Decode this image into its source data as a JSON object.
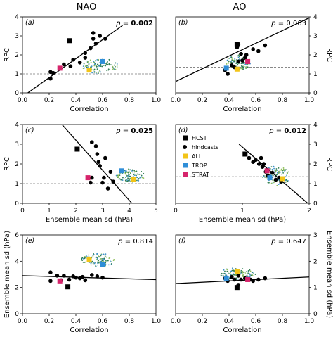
{
  "column_titles": [
    "NAO",
    "AO"
  ],
  "legend": [
    {
      "label": "HCST",
      "color": "#000000",
      "marker": "square"
    },
    {
      "label": "hindcasts",
      "color": "#000000",
      "marker": "circle"
    },
    {
      "label": "ALL",
      "color": "#f2c418",
      "marker": "square"
    },
    {
      "label": "TROP",
      "color": "#2f8ed8",
      "marker": "square"
    },
    {
      "label": "STRAT",
      "color": "#d6246b",
      "marker": "square"
    }
  ],
  "chart_data": [
    {
      "id": "a",
      "panel_label": "(a)",
      "type": "scatter",
      "p_label": "p = ",
      "p_value": "0.002",
      "p_bold": true,
      "xlabel": "Correlation",
      "ylabel": "RPC",
      "ylabel_side": "left",
      "xlim": [
        0,
        1
      ],
      "ylim": [
        0,
        4
      ],
      "xticks": [
        "0.0",
        "0.2",
        "0.4",
        "0.6",
        "0.8",
        "1.0"
      ],
      "xtick_values": [
        0,
        0.2,
        0.4,
        0.6,
        0.8,
        1.0
      ],
      "yticks": [
        "0",
        "1",
        "2",
        "3",
        "4"
      ],
      "ytick_values": [
        0,
        1,
        2,
        3,
        4
      ],
      "hline": 1,
      "fit_line": [
        [
          0.04,
          0
        ],
        [
          0.75,
          3.55
        ]
      ],
      "cloud": [
        {
          "x": [
            0.45,
            0.72
          ],
          "y": [
            1.0,
            1.8
          ]
        }
      ],
      "hindcasts": [
        [
          0.21,
          0.75
        ],
        [
          0.21,
          1.1
        ],
        [
          0.31,
          1.5
        ],
        [
          0.36,
          1.4
        ],
        [
          0.38,
          1.75
        ],
        [
          0.43,
          1.6
        ],
        [
          0.47,
          1.85
        ],
        [
          0.47,
          2.1
        ],
        [
          0.51,
          2.35
        ],
        [
          0.53,
          2.85
        ],
        [
          0.55,
          2.6
        ],
        [
          0.58,
          3.0
        ],
        [
          0.62,
          2.85
        ],
        [
          0.53,
          3.15
        ],
        [
          0.23,
          1.05
        ]
      ],
      "hcst": [
        0.35,
        2.75
      ],
      "all": [
        0.5,
        1.2
      ],
      "trop": [
        0.6,
        1.65
      ],
      "strat": [
        0.28,
        1.3
      ]
    },
    {
      "id": "b",
      "panel_label": "(b)",
      "type": "scatter",
      "p_label": "p = ",
      "p_value": "0.063",
      "p_bold": false,
      "xlabel": "Correlation",
      "ylabel": "RPC",
      "ylabel_side": "right",
      "xlim": [
        0,
        1
      ],
      "ylim": [
        0,
        4
      ],
      "xticks": [
        "0.0",
        "0.2",
        "0.4",
        "0.6",
        "0.8",
        "1.0"
      ],
      "xtick_values": [
        0,
        0.2,
        0.4,
        0.6,
        0.8,
        1.0
      ],
      "yticks": [
        "0",
        "1",
        "2",
        "3",
        "4"
      ],
      "ytick_values": [
        0,
        1,
        2,
        3,
        4
      ],
      "hline": 1.35,
      "fit_line": [
        [
          0.0,
          0.6
        ],
        [
          1.0,
          3.95
        ]
      ],
      "cloud": [
        {
          "x": [
            0.38,
            0.56
          ],
          "y": [
            1.2,
            2.0
          ]
        }
      ],
      "hindcasts": [
        [
          0.37,
          1.2
        ],
        [
          0.39,
          1.0
        ],
        [
          0.42,
          1.45
        ],
        [
          0.44,
          1.35
        ],
        [
          0.47,
          1.65
        ],
        [
          0.49,
          2.05
        ],
        [
          0.5,
          1.7
        ],
        [
          0.52,
          1.85
        ],
        [
          0.46,
          2.4
        ],
        [
          0.47,
          2.55
        ],
        [
          0.53,
          2.0
        ],
        [
          0.58,
          2.3
        ],
        [
          0.62,
          2.2
        ],
        [
          0.67,
          2.5
        ]
      ],
      "hcst": [
        0.46,
        2.55
      ],
      "all": [
        0.46,
        1.25
      ],
      "trop": [
        0.38,
        1.3
      ],
      "strat": [
        0.54,
        1.65
      ]
    },
    {
      "id": "c",
      "panel_label": "(c)",
      "type": "scatter",
      "p_label": "p = ",
      "p_value": "0.025",
      "p_bold": true,
      "xlabel": "Ensemble mean sd (hPa)",
      "ylabel": "RPC",
      "ylabel_side": "left",
      "xlim": [
        0,
        5
      ],
      "ylim": [
        0,
        4
      ],
      "xticks": [
        "0",
        "1",
        "2",
        "3",
        "4",
        "5"
      ],
      "xtick_values": [
        0,
        1,
        2,
        3,
        4,
        5
      ],
      "yticks": [
        "0",
        "1",
        "2",
        "3",
        "4"
      ],
      "ytick_values": [
        0,
        1,
        2,
        3,
        4
      ],
      "hline": 1,
      "fit_line": [
        [
          1.48,
          4.0
        ],
        [
          4.1,
          0
        ]
      ],
      "cloud": [
        {
          "x": [
            3.5,
            4.6
          ],
          "y": [
            1.05,
            1.75
          ]
        }
      ],
      "hindcasts": [
        [
          2.55,
          1.05
        ],
        [
          2.6,
          1.3
        ],
        [
          2.6,
          3.1
        ],
        [
          2.75,
          2.9
        ],
        [
          2.8,
          2.5
        ],
        [
          2.85,
          2.1
        ],
        [
          2.9,
          1.9
        ],
        [
          3.05,
          1.3
        ],
        [
          3.1,
          2.3
        ],
        [
          3.2,
          0.75
        ],
        [
          3.0,
          1.05
        ],
        [
          3.3,
          1.6
        ],
        [
          3.4,
          1.1
        ]
      ],
      "hcst": [
        2.05,
        2.75
      ],
      "all": [
        4.15,
        1.2
      ],
      "trop": [
        3.7,
        1.65
      ],
      "strat": [
        2.45,
        1.3
      ]
    },
    {
      "id": "d",
      "panel_label": "(d)",
      "type": "scatter",
      "p_label": "p = ",
      "p_value": "0.012",
      "p_bold": true,
      "xlabel": "Ensemble mean sd (hPa)",
      "ylabel": "RPC",
      "ylabel_side": "right",
      "xlim": [
        0,
        2
      ],
      "ylim": [
        0,
        4
      ],
      "xticks": [
        "0",
        "1",
        "2"
      ],
      "xtick_values": [
        0,
        1,
        2
      ],
      "yticks": [
        "0",
        "1",
        "2",
        "3",
        "4"
      ],
      "ytick_values": [
        0,
        1,
        2,
        3,
        4
      ],
      "hline": 1.35,
      "fit_line": [
        [
          0.95,
          3.0
        ],
        [
          1.98,
          0
        ]
      ],
      "cloud": [
        {
          "x": [
            1.3,
            1.72
          ],
          "y": [
            0.9,
            1.9
          ]
        }
      ],
      "hindcasts": [
        [
          1.1,
          2.3
        ],
        [
          1.16,
          2.1
        ],
        [
          1.2,
          2.2
        ],
        [
          1.25,
          2.0
        ],
        [
          1.3,
          1.85
        ],
        [
          1.32,
          2.0
        ],
        [
          1.35,
          1.6
        ],
        [
          1.38,
          1.4
        ],
        [
          1.42,
          1.3
        ],
        [
          1.45,
          1.55
        ],
        [
          1.5,
          1.2
        ],
        [
          1.55,
          1.3
        ],
        [
          1.58,
          1.1
        ],
        [
          1.28,
          2.3
        ]
      ],
      "hcst": [
        1.04,
        2.5
      ],
      "all": [
        1.6,
        1.25
      ],
      "trop": [
        1.41,
        1.3
      ],
      "strat": [
        1.37,
        1.65
      ]
    },
    {
      "id": "e",
      "panel_label": "(e)",
      "type": "scatter",
      "p_label": "p = ",
      "p_value": "0.814",
      "p_bold": false,
      "xlabel": "Correlation",
      "ylabel": "Ensemble mean sd (hPa)",
      "ylabel_side": "left",
      "xlim": [
        0,
        1
      ],
      "ylim": [
        0,
        6
      ],
      "xticks": [
        "0.0",
        "0.2",
        "0.4",
        "0.6",
        "0.8",
        "1.0"
      ],
      "xtick_values": [
        0,
        0.2,
        0.4,
        0.6,
        0.8,
        1.0
      ],
      "yticks": [
        "0",
        "2",
        "4",
        "6"
      ],
      "ytick_values": [
        0,
        2,
        4,
        6
      ],
      "hline": null,
      "fit_line": [
        [
          0.0,
          2.9
        ],
        [
          1.0,
          2.6
        ]
      ],
      "cloud": [
        {
          "x": [
            0.44,
            0.7
          ],
          "y": [
            3.6,
            4.6
          ]
        }
      ],
      "hindcasts": [
        [
          0.21,
          3.15
        ],
        [
          0.21,
          2.5
        ],
        [
          0.26,
          2.9
        ],
        [
          0.29,
          2.55
        ],
        [
          0.31,
          2.9
        ],
        [
          0.35,
          2.6
        ],
        [
          0.38,
          2.85
        ],
        [
          0.4,
          2.75
        ],
        [
          0.43,
          2.7
        ],
        [
          0.45,
          2.8
        ],
        [
          0.47,
          2.55
        ],
        [
          0.52,
          2.95
        ],
        [
          0.56,
          2.85
        ],
        [
          0.6,
          2.75
        ]
      ],
      "hcst": [
        0.34,
        2.05
      ],
      "all": [
        0.5,
        4.1
      ],
      "trop": [
        0.6,
        3.75
      ],
      "strat": [
        0.28,
        2.5
      ]
    },
    {
      "id": "f",
      "panel_label": "(f)",
      "type": "scatter",
      "p_label": "p = ",
      "p_value": "0.647",
      "p_bold": false,
      "xlabel": "Correlation",
      "ylabel": "Ensemble mean sd (hPa)",
      "ylabel_side": "right",
      "xlim": [
        0,
        1
      ],
      "ylim": [
        0,
        3
      ],
      "xticks": [
        "0.0",
        "0.2",
        "0.4",
        "0.6",
        "0.8",
        "1.0"
      ],
      "xtick_values": [
        0,
        0.2,
        0.4,
        0.6,
        0.8,
        1.0
      ],
      "yticks": [
        "0",
        "1",
        "2",
        "3"
      ],
      "ytick_values": [
        0,
        1,
        2,
        3
      ],
      "hline": null,
      "fit_line": [
        [
          0.0,
          1.15
        ],
        [
          1.0,
          1.4
        ]
      ],
      "cloud": [
        {
          "x": [
            0.33,
            0.6
          ],
          "y": [
            1.3,
            1.75
          ]
        }
      ],
      "hindcasts": [
        [
          0.37,
          1.35
        ],
        [
          0.39,
          1.25
        ],
        [
          0.42,
          1.4
        ],
        [
          0.44,
          1.3
        ],
        [
          0.47,
          1.1
        ],
        [
          0.47,
          1.45
        ],
        [
          0.49,
          1.3
        ],
        [
          0.52,
          1.35
        ],
        [
          0.56,
          1.3
        ],
        [
          0.58,
          1.25
        ],
        [
          0.62,
          1.3
        ],
        [
          0.67,
          1.35
        ]
      ],
      "hcst": [
        0.46,
        1.0
      ],
      "all": [
        0.46,
        1.6
      ],
      "trop": [
        0.38,
        1.35
      ],
      "strat": [
        0.54,
        1.3
      ]
    }
  ]
}
